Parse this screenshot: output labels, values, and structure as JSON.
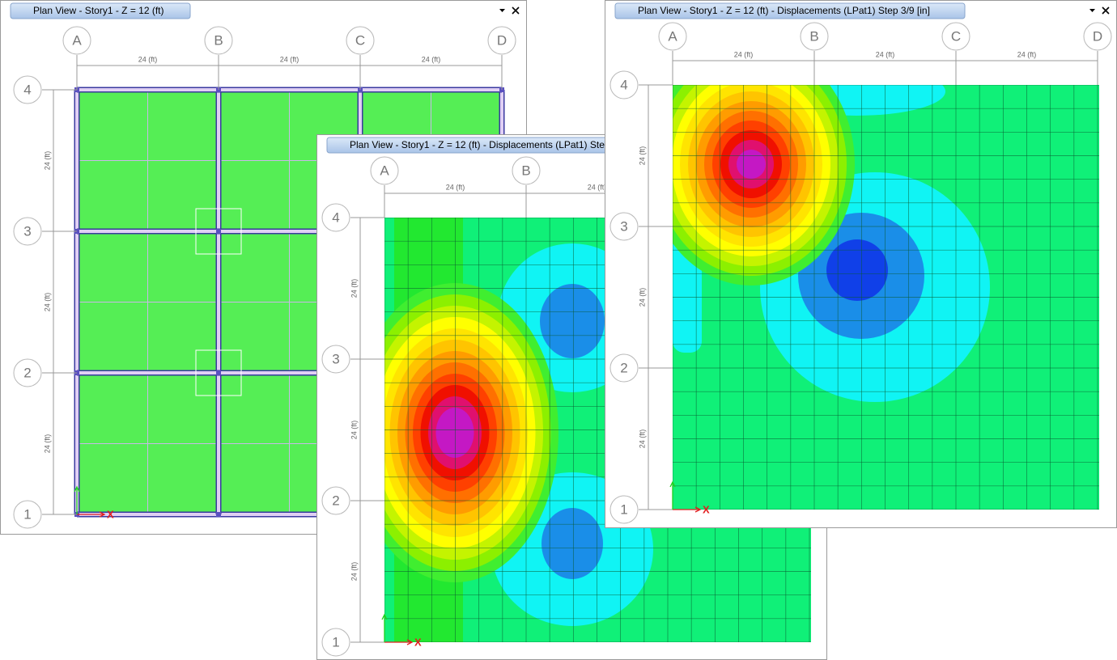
{
  "windows": [
    {
      "title": "Plan View - Story1 - Z = 12 (ft)",
      "grid_columns": [
        "A",
        "B",
        "C",
        "D"
      ],
      "grid_rows": [
        "1",
        "2",
        "3",
        "4"
      ],
      "x_dimensions": [
        "24 (ft)",
        "24 (ft)",
        "24 (ft)"
      ],
      "y_dimensions": [
        "24 (ft)",
        "24 (ft)",
        "24 (ft)"
      ],
      "axis_label": "X"
    },
    {
      "title": "Plan View - Story1 - Z = 12 (ft)   - Displacements (LPat1)  Ste",
      "grid_columns": [
        "A",
        "B"
      ],
      "grid_rows": [
        "1",
        "2",
        "3",
        "4"
      ],
      "x_dimensions": [
        "24 (ft)",
        "24 (ft)"
      ],
      "y_dimensions": [
        "24 (ft)",
        "24 (ft)",
        "24 (ft)"
      ],
      "axis_label": "X"
    },
    {
      "title": "Plan View - Story1 - Z = 12 (ft)   - Displacements (LPat1)  Step 3/9  [in]",
      "grid_columns": [
        "A",
        "B",
        "C",
        "D"
      ],
      "grid_rows": [
        "1",
        "2",
        "3",
        "4"
      ],
      "x_dimensions": [
        "24 (ft)",
        "24 (ft)",
        "24 (ft)"
      ],
      "y_dimensions": [
        "24 (ft)",
        "24 (ft)",
        "24 (ft)"
      ],
      "axis_label": "X"
    }
  ]
}
